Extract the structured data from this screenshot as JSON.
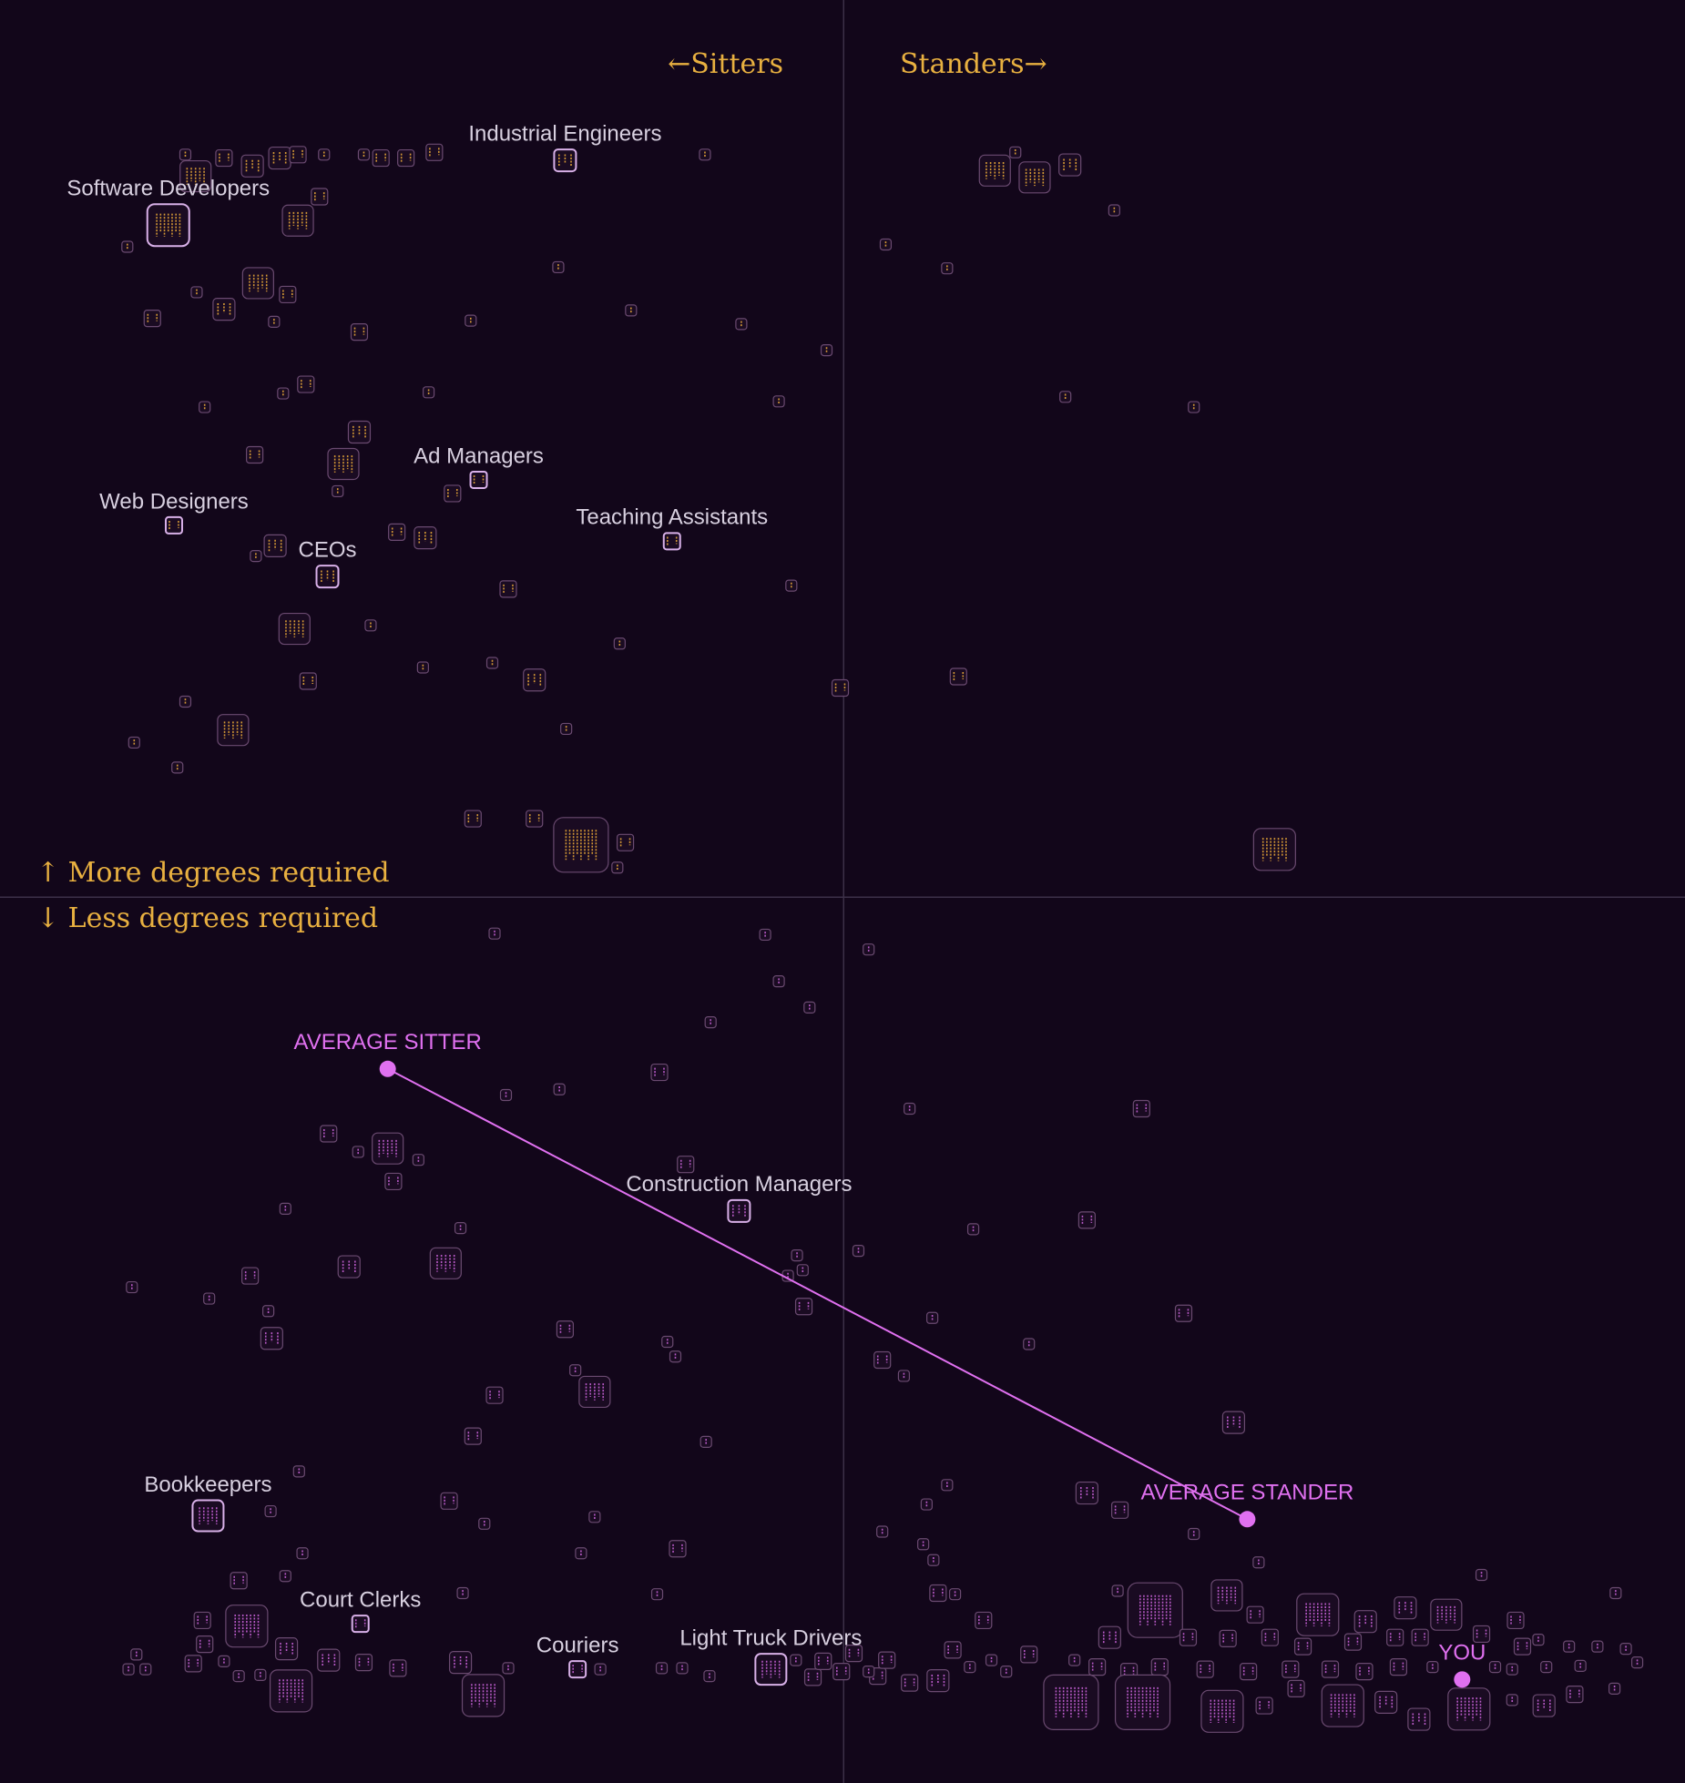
{
  "chart_data": {
    "type": "scatter",
    "x_labels": [
      "←Sitters",
      "Standers→"
    ],
    "y_labels": [
      "↑ More degrees required",
      "↓ Less degrees required"
    ],
    "xlim": [
      -742,
      740
    ],
    "ylim": [
      -779,
      789
    ],
    "colors": [
      "#e8a838",
      "#c862d8"
    ],
    "series": [
      {
        "labels": [
          "Industrial Engineers",
          "Software Developers",
          "Ad Managers",
          "Web Designers",
          "Teaching Assistants",
          "CEOs",
          "Construction Managers",
          "Bookkeepers",
          "Court Clerks",
          "Couriers",
          "Light Truck Drivers"
        ],
        "x": [
          -245,
          -594,
          -321,
          -589,
          -151,
          -454,
          -92,
          -559,
          -425,
          -234,
          -64
        ],
        "values": [
          648,
          591,
          367,
          327,
          313,
          282,
          -276,
          -544,
          -639,
          -679,
          -679
        ],
        "sizes": [
          2,
          4,
          1,
          1,
          1,
          2,
          2,
          3,
          1,
          1,
          3
        ]
      },
      {
        "x": [
          -570,
          -520,
          -496,
          -545,
          -407,
          -385,
          -360,
          -480,
          -579,
          -457,
          -422,
          -122,
          -461,
          -480,
          -630,
          -515,
          -489,
          -569,
          -545,
          -608,
          -501,
          -426,
          -251,
          -328,
          -187,
          -90,
          -15,
          -473,
          -493,
          -365,
          -562,
          -57,
          -426,
          -440,
          -518,
          -445,
          -344,
          -368,
          -393,
          -500,
          -517,
          -295,
          -46,
          -483,
          -416,
          -197,
          -370,
          -309,
          -471,
          -272,
          -3,
          -579,
          -244,
          -537,
          -624,
          -586,
          -326,
          -272,
          -231,
          -192,
          -199,
          133,
          168,
          199,
          151,
          238,
          37,
          91,
          195,
          308,
          101,
          379,
          -307,
          -69,
          22,
          -57,
          -30,
          -117,
          -162,
          -297,
          -250,
          -453,
          -401,
          -427,
          -374,
          -396,
          -139,
          -491,
          -337,
          -435,
          -350,
          -626,
          -558,
          -522,
          -506,
          -503,
          -245,
          -155,
          -148,
          -219,
          -236,
          -307,
          -326,
          -121,
          -479,
          -347,
          -504,
          -316,
          -219,
          -476,
          -231,
          -146,
          -532,
          -491,
          -335,
          -164,
          -525,
          -564,
          -562,
          -490,
          -453,
          -422,
          -392,
          -486,
          -337,
          -317,
          -295,
          -214,
          -622,
          -629,
          -614,
          -572,
          -545,
          -532,
          -513,
          -41,
          -36,
          -49,
          -35,
          13,
          114,
          214,
          262,
          58,
          78,
          299,
          163,
          34,
          53,
          343,
          214,
          243,
          308,
          91,
          73,
          34,
          70,
          79,
          365,
          561,
          679,
          83,
          98,
          123,
          274,
          337,
          241,
          362,
          417,
          459,
          494,
          530,
          234,
          303,
          338,
          375,
          404,
          448,
          485,
          507,
          561,
          591,
          597,
          611,
          638,
          663,
          688,
          698,
          648,
          618,
          588,
          573,
          518,
          488,
          458,
          428,
          393,
          356,
          318,
          278,
          251,
          223,
          203,
          163,
          143,
          200,
          263,
          333,
          370,
          398,
          439,
          477,
          506,
          550,
          588,
          616,
          643,
          678,
          83,
          96,
          58,
          30,
          -2,
          -27,
          38,
          -42,
          -118,
          -142,
          -160,
          9,
          22,
          -18,
          111,
          130
        ],
        "values": [
          634,
          643,
          650,
          650,
          650,
          650,
          655,
          653,
          653,
          653,
          653,
          653,
          616,
          595,
          572,
          540,
          530,
          532,
          517,
          509,
          506,
          497,
          554,
          507,
          516,
          504,
          481,
          451,
          443,
          444,
          431,
          436,
          409,
          381,
          389,
          357,
          355,
          316,
          321,
          309,
          300,
          271,
          274,
          236,
          239,
          223,
          202,
          206,
          190,
          191,
          184,
          172,
          148,
          147,
          136,
          114,
          69,
          69,
          46,
          48,
          26,
          639,
          633,
          644,
          655,
          604,
          574,
          553,
          440,
          431,
          194,
          42,
          -32,
          -33,
          -46,
          -74,
          -97,
          -110,
          -154,
          -174,
          -169,
          -208,
          -221,
          -224,
          -231,
          -250,
          -235,
          -274,
          -291,
          -325,
          -322,
          -343,
          -353,
          -333,
          -364,
          -388,
          -380,
          -391,
          -404,
          -435,
          -416,
          -438,
          -474,
          -479,
          -505,
          -531,
          -540,
          -551,
          -545,
          -577,
          -577,
          -573,
          -601,
          -597,
          -612,
          -613,
          -641,
          -636,
          -657,
          -661,
          -671,
          -673,
          -678,
          -698,
          -673,
          -702,
          -678,
          -679,
          -666,
          -679,
          -679,
          -674,
          -672,
          -685,
          -684,
          -315,
          -328,
          -333,
          -360,
          -311,
          -292,
          -284,
          -186,
          -186,
          -370,
          -366,
          -393,
          -407,
          -421,
          -462,
          -524,
          -539,
          -560,
          -517,
          -534,
          -558,
          -569,
          -583,
          -585,
          -596,
          -612,
          -612,
          -613,
          -636,
          -627,
          -614,
          -610,
          -631,
          -631,
          -637,
          -625,
          -631,
          -651,
          -651,
          -652,
          -651,
          -659,
          -655,
          -651,
          -651,
          -648,
          -636,
          -659,
          -653,
          -659,
          -659,
          -661,
          -673,
          -676,
          -677,
          -679,
          -677,
          -677,
          -677,
          -681,
          -679,
          -679,
          -681,
          -679,
          -677,
          -681,
          -677,
          -671,
          -666,
          -681,
          -708,
          -708,
          -716,
          -711,
          -696,
          -711,
          -708,
          -723,
          -714,
          -706,
          -711,
          -701,
          -696,
          -689,
          -662,
          -691,
          -685,
          -681,
          -686,
          -671,
          -671,
          -685,
          -678,
          -678,
          -665,
          -681,
          -672,
          -677,
          -671
        ],
        "sizes": [
          3,
          2,
          2,
          1,
          1,
          1,
          1,
          1,
          0,
          0,
          0,
          0,
          1,
          3,
          0,
          3,
          1,
          0,
          2,
          1,
          0,
          1,
          0,
          0,
          0,
          0,
          0,
          1,
          0,
          0,
          0,
          0,
          2,
          3,
          1,
          0,
          1,
          2,
          1,
          2,
          0,
          1,
          0,
          3,
          0,
          0,
          0,
          0,
          1,
          2,
          1,
          0,
          0,
          3,
          0,
          0,
          1,
          1,
          5,
          1,
          0,
          3,
          3,
          2,
          0,
          0,
          0,
          0,
          0,
          0,
          1,
          4,
          0,
          0,
          0,
          0,
          0,
          0,
          1,
          0,
          0,
          1,
          3,
          0,
          0,
          1,
          1,
          0,
          0,
          2,
          3,
          0,
          0,
          1,
          0,
          2,
          1,
          0,
          0,
          3,
          0,
          1,
          1,
          0,
          0,
          1,
          0,
          0,
          0,
          0,
          0,
          1,
          1,
          0,
          0,
          0,
          4,
          1,
          1,
          2,
          2,
          1,
          1,
          4,
          2,
          4,
          0,
          0,
          0,
          0,
          0,
          1,
          0,
          0,
          0,
          0,
          0,
          0,
          1,
          0,
          0,
          1,
          1,
          0,
          0,
          1,
          0,
          1,
          0,
          2,
          2,
          1,
          0,
          0,
          0,
          0,
          0,
          0,
          0,
          0,
          0,
          1,
          0,
          1,
          5,
          3,
          0,
          1,
          4,
          2,
          2,
          3,
          2,
          1,
          1,
          1,
          1,
          1,
          1,
          1,
          1,
          1,
          1,
          0,
          0,
          0,
          0,
          0,
          0,
          0,
          0,
          0,
          0,
          1,
          1,
          1,
          1,
          1,
          1,
          1,
          1,
          1,
          0,
          1,
          0,
          5,
          5,
          4,
          1,
          1,
          4,
          2,
          2,
          4,
          0,
          2,
          1,
          0,
          2,
          1,
          1,
          1,
          1,
          1,
          1,
          0,
          0,
          0,
          0,
          1,
          0,
          1,
          0,
          0
        ]
      }
    ],
    "highlights": {
      "labels": [
        "AVERAGE SITTER",
        "AVERAGE STANDER",
        "YOU"
      ],
      "x": [
        -401,
        355,
        544
      ],
      "values": [
        -151,
        -547,
        -688
      ],
      "color": "#e070f0"
    }
  }
}
